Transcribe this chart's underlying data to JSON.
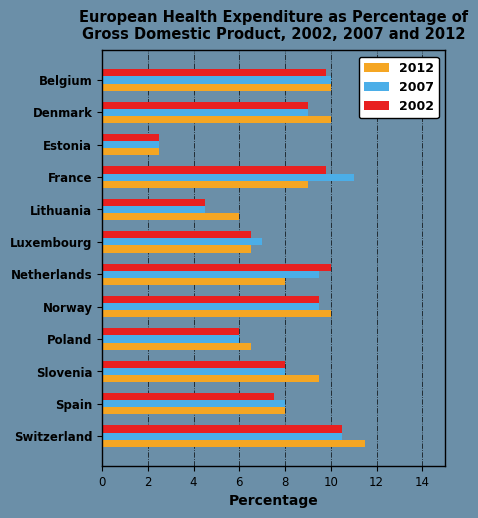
{
  "title": "European Health Expenditure as Percentage of\nGross Domestic Product, 2002, 2007 and 2012",
  "countries": [
    "Belgium",
    "Denmark",
    "Estonia",
    "France",
    "Lithuania",
    "Luxembourg",
    "Netherlands",
    "Norway",
    "Poland",
    "Slovenia",
    "Spain",
    "Switzerland"
  ],
  "years": [
    "2012",
    "2007",
    "2002"
  ],
  "values": {
    "Belgium": [
      10.0,
      10.0,
      9.8
    ],
    "Denmark": [
      10.0,
      9.0,
      9.0
    ],
    "Estonia": [
      2.5,
      2.5,
      2.5
    ],
    "France": [
      9.0,
      11.0,
      9.8
    ],
    "Lithuania": [
      6.0,
      4.5,
      4.5
    ],
    "Luxembourg": [
      6.5,
      7.0,
      6.5
    ],
    "Netherlands": [
      8.0,
      9.5,
      10.0
    ],
    "Norway": [
      10.0,
      9.5,
      9.5
    ],
    "Poland": [
      6.5,
      6.0,
      6.0
    ],
    "Slovenia": [
      9.5,
      8.0,
      8.0
    ],
    "Spain": [
      8.0,
      8.0,
      7.5
    ],
    "Switzerland": [
      11.5,
      10.5,
      10.5
    ]
  },
  "colors": {
    "2012": "#F5A623",
    "2007": "#4BAEE8",
    "2002": "#E82020"
  },
  "xlabel": "Percentage",
  "xlim": [
    0,
    15
  ],
  "xticks": [
    0,
    2,
    4,
    6,
    8,
    10,
    12,
    14
  ],
  "background_color": "#6B8FA8",
  "plot_bg_color": "#6B8FA8",
  "bar_height": 0.22,
  "title_fontsize": 10.5,
  "tick_fontsize": 8.5,
  "legend_fontsize": 9
}
